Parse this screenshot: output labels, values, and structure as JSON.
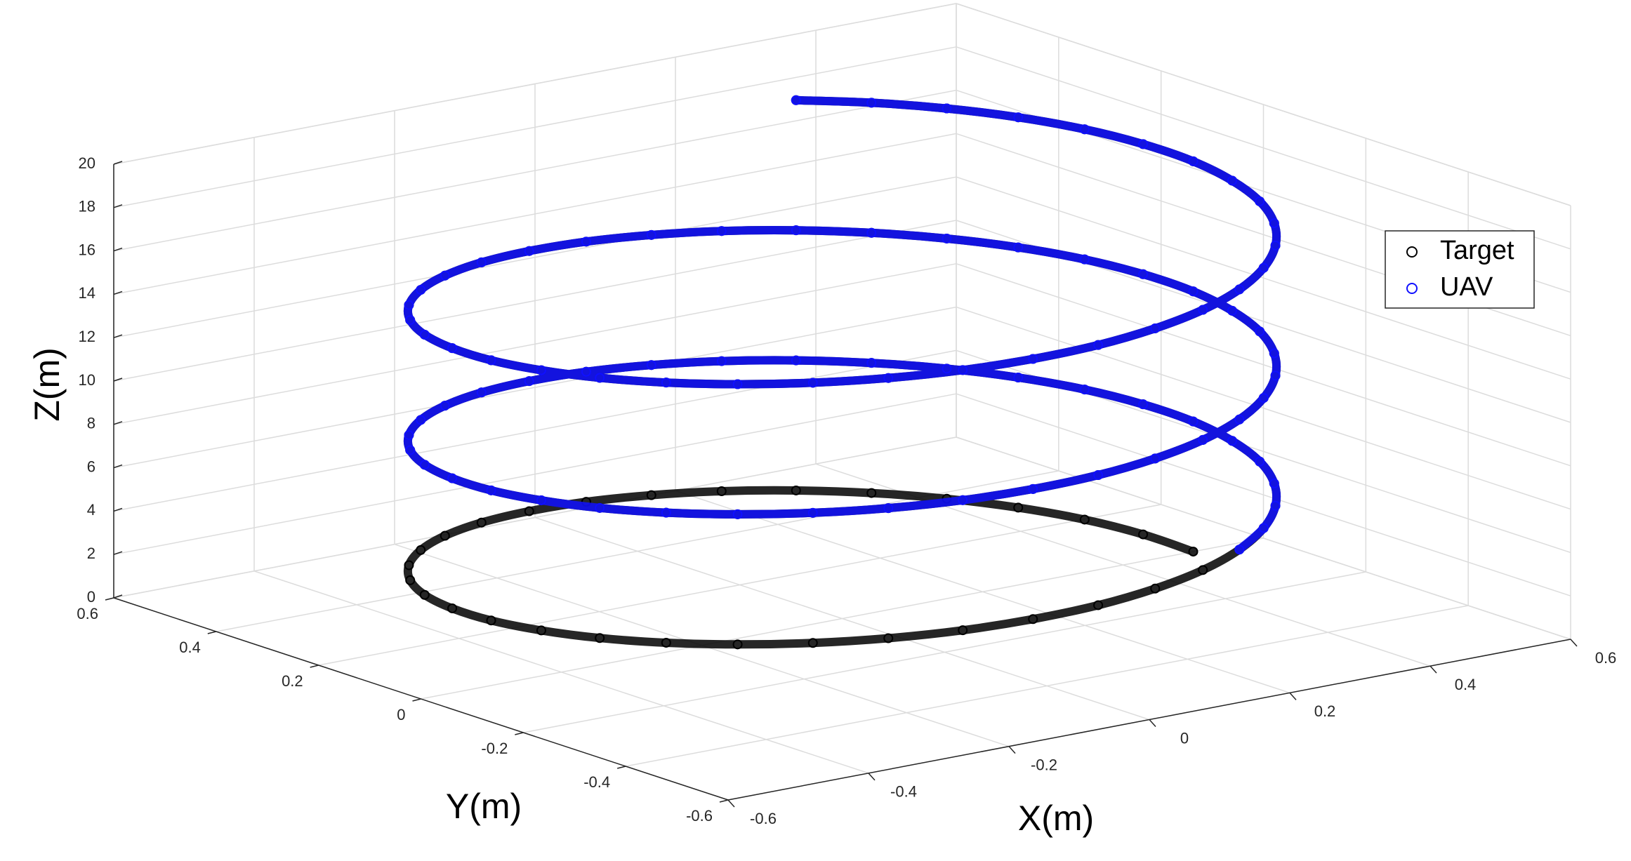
{
  "chart_data": {
    "type": "scatter",
    "xlabel": "X(m)",
    "ylabel": "Y(m)",
    "zlabel": "Z(m)",
    "xlim": [
      -0.6,
      0.6
    ],
    "ylim": [
      -0.6,
      0.6
    ],
    "zlim": [
      0,
      20
    ],
    "xticks": [
      -0.6,
      -0.4,
      -0.2,
      0,
      0.2,
      0.4,
      0.6
    ],
    "yticks": [
      -0.6,
      -0.4,
      -0.2,
      0,
      0.2,
      0.4,
      0.6
    ],
    "zticks": [
      0,
      2,
      4,
      6,
      8,
      10,
      12,
      14,
      16,
      18,
      20
    ],
    "grid": true,
    "legend": "east",
    "series": [
      {
        "name": "Target",
        "color": "#000000",
        "x": [
          0.5,
          0.492,
          0.47,
          0.433,
          0.383,
          0.321,
          0.25,
          0.171,
          0.087,
          0,
          -0.087,
          -0.171,
          -0.25,
          -0.321,
          -0.383,
          -0.433,
          -0.47,
          -0.492,
          -0.5,
          -0.492,
          -0.47,
          -0.433,
          -0.383,
          -0.321,
          -0.25,
          -0.171,
          -0.087,
          0,
          0.087,
          0.171,
          0.25,
          0.321,
          0.383,
          0.433,
          0.47,
          0.492,
          0.5,
          0.492,
          0.47,
          0.433,
          0.383,
          0.321,
          0.25,
          0.171,
          0.087,
          0,
          -0.087,
          -0.171,
          -0.25,
          -0.321,
          -0.383,
          -0.433,
          -0.47,
          -0.492,
          -0.5,
          -0.492,
          -0.47,
          -0.433,
          -0.383,
          -0.321,
          -0.25,
          -0.171,
          -0.087,
          0,
          0.087,
          0.171,
          0.25,
          0.321,
          0.383,
          0.433,
          0.47,
          0.492,
          0.5,
          0.492,
          0.47,
          0.433,
          0.383,
          0.321,
          0.25,
          0.171,
          0.087,
          0,
          -0.087,
          -0.171,
          -0.25,
          -0.321,
          -0.383,
          -0.433,
          -0.47,
          -0.492,
          -0.5,
          -0.492,
          -0.47,
          -0.433,
          -0.383,
          -0.321,
          -0.25,
          -0.171,
          -0.087,
          0,
          0.087,
          0.171,
          0.25,
          0.321,
          0.383,
          0.433,
          0.47,
          0.492,
          0.5,
          0.492,
          0.47,
          0.433,
          0.383,
          0.321,
          0.25
        ],
        "y": [
          0,
          0.087,
          0.171,
          0.25,
          0.321,
          0.383,
          0.433,
          0.47,
          0.492,
          0.5,
          0.492,
          0.47,
          0.433,
          0.383,
          0.321,
          0.25,
          0.171,
          0.087,
          0,
          -0.087,
          -0.171,
          -0.25,
          -0.321,
          -0.383,
          -0.433,
          -0.47,
          -0.492,
          -0.5,
          -0.492,
          -0.47,
          -0.433,
          -0.383,
          -0.321,
          -0.25,
          -0.171,
          -0.087,
          0,
          0.087,
          0.171,
          0.25,
          0.321,
          0.383,
          0.433,
          0.47,
          0.492,
          0.5,
          0.492,
          0.47,
          0.433,
          0.383,
          0.321,
          0.25,
          0.171,
          0.087,
          0,
          -0.087,
          -0.171,
          -0.25,
          -0.321,
          -0.383,
          -0.433,
          -0.47,
          -0.492,
          -0.5,
          -0.492,
          -0.47,
          -0.433,
          -0.383,
          -0.321,
          -0.25,
          -0.171,
          -0.087,
          0,
          0.087,
          0.171,
          0.25,
          0.321,
          0.383,
          0.433,
          0.47,
          0.492,
          0.5,
          0.492,
          0.47,
          0.433,
          0.383,
          0.321,
          0.25,
          0.171,
          0.087,
          0,
          -0.087,
          -0.171,
          -0.25,
          -0.321,
          -0.383,
          -0.433,
          -0.47,
          -0.492,
          -0.5,
          -0.492,
          -0.47,
          -0.433,
          -0.383,
          -0.321,
          -0.25,
          -0.171,
          -0.087,
          0,
          0.087,
          0.171,
          0.25,
          0.321,
          0.383,
          0.433
        ],
        "z": [
          0,
          0.167,
          0.333,
          0.5,
          0.667,
          0.833,
          1,
          1.167,
          1.333,
          1.5,
          1.667,
          1.833,
          2,
          2.167,
          2.333,
          2.5,
          2.667,
          2.833,
          3,
          3.167,
          3.333,
          3.5,
          3.667,
          3.833,
          4,
          4.167,
          4.333,
          4.5,
          4.667,
          4.833,
          5,
          5.167,
          5.333,
          5.5,
          5.667,
          5.833,
          6,
          6.167,
          6.333,
          6.5,
          6.667,
          6.833,
          7,
          7.167,
          7.333,
          7.5,
          7.667,
          7.833,
          8,
          8.167,
          8.333,
          8.5,
          8.667,
          8.833,
          9,
          9.167,
          9.333,
          9.5,
          9.667,
          9.833,
          10,
          10.167,
          10.333,
          10.5,
          10.667,
          10.833,
          11,
          11.167,
          11.333,
          11.5,
          11.667,
          11.833,
          12,
          12.167,
          12.333,
          12.5,
          12.667,
          12.833,
          13,
          13.167,
          13.333,
          13.5,
          13.667,
          13.833,
          14,
          14.167,
          14.333,
          14.5,
          14.667,
          14.833,
          15,
          15.167,
          15.333,
          15.5,
          15.667,
          15.833,
          16,
          16.167,
          16.333,
          16.5,
          16.667,
          16.833,
          17,
          17.167,
          17.333,
          17.5,
          17.667,
          17.833,
          18,
          18.167,
          18.333,
          18.5,
          18.667,
          18.833,
          19
        ]
      },
      {
        "name": "UAV",
        "color": "#1010ff",
        "x": [
          0.25,
          0.321,
          0.383,
          0.433,
          0.47,
          0.492,
          0.5,
          0.492,
          0.47,
          0.433,
          0.383,
          0.321,
          0.25,
          0.171,
          0.087,
          0,
          -0.087,
          -0.171,
          -0.25,
          -0.321,
          -0.383,
          -0.433,
          -0.47,
          -0.492,
          -0.5,
          -0.492,
          -0.47,
          -0.433,
          -0.383,
          -0.321,
          -0.25,
          -0.171,
          -0.087,
          0,
          0.087,
          0.171,
          0.25,
          0.321,
          0.383,
          0.433,
          0.47,
          0.492,
          0.5,
          0.492,
          0.47,
          0.433,
          0.383,
          0.321,
          0.25,
          0.171,
          0.087,
          0,
          -0.087,
          -0.171,
          -0.25,
          -0.321,
          -0.383,
          -0.433,
          -0.47,
          -0.492,
          -0.5,
          -0.492,
          -0.47,
          -0.433,
          -0.383,
          -0.321,
          -0.25,
          -0.171,
          -0.087,
          0,
          0.087,
          0.171,
          0.25,
          0.321,
          0.383,
          0.433,
          0.47,
          0.492,
          0.5,
          0.492,
          0.47,
          0.433,
          0.383,
          0.321,
          0.25
        ],
        "y": [
          -0.433,
          -0.383,
          -0.321,
          -0.25,
          -0.171,
          -0.087,
          0,
          0.087,
          0.171,
          0.25,
          0.321,
          0.383,
          0.433,
          0.47,
          0.492,
          0.5,
          0.492,
          0.47,
          0.433,
          0.383,
          0.321,
          0.25,
          0.171,
          0.087,
          0,
          -0.087,
          -0.171,
          -0.25,
          -0.321,
          -0.383,
          -0.433,
          -0.47,
          -0.492,
          -0.5,
          -0.492,
          -0.47,
          -0.433,
          -0.383,
          -0.321,
          -0.25,
          -0.171,
          -0.087,
          0,
          0.087,
          0.171,
          0.25,
          0.321,
          0.383,
          0.433,
          0.47,
          0.492,
          0.5,
          0.492,
          0.47,
          0.433,
          0.383,
          0.321,
          0.25,
          0.171,
          0.087,
          0,
          -0.087,
          -0.171,
          -0.25,
          -0.321,
          -0.383,
          -0.433,
          -0.47,
          -0.492,
          -0.5,
          -0.492,
          -0.47,
          -0.433,
          -0.383,
          -0.321,
          -0.25,
          -0.171,
          -0.087,
          0,
          0.087,
          0.171,
          0.25,
          0.321,
          0.383,
          0.433
        ],
        "z": [
          5,
          5.167,
          5.333,
          5.5,
          5.667,
          5.833,
          6,
          6.167,
          6.333,
          6.5,
          6.667,
          6.833,
          7,
          7.167,
          7.333,
          7.5,
          7.667,
          7.833,
          8,
          8.167,
          8.333,
          8.5,
          8.667,
          8.833,
          9,
          9.167,
          9.333,
          9.5,
          9.667,
          9.833,
          10,
          10.167,
          10.333,
          10.5,
          10.667,
          10.833,
          11,
          11.167,
          11.333,
          11.5,
          11.667,
          11.833,
          12,
          12.167,
          12.333,
          12.5,
          12.667,
          12.833,
          13,
          13.167,
          13.333,
          13.5,
          13.667,
          13.833,
          14,
          14.167,
          14.333,
          14.5,
          14.667,
          14.833,
          15,
          15.167,
          15.333,
          15.5,
          15.667,
          15.833,
          16,
          16.167,
          16.333,
          16.5,
          16.667,
          16.833,
          17,
          17.167,
          17.333,
          17.5,
          17.667,
          17.833,
          18,
          18.167,
          18.333,
          18.5,
          18.667,
          18.833,
          19
        ]
      }
    ]
  }
}
